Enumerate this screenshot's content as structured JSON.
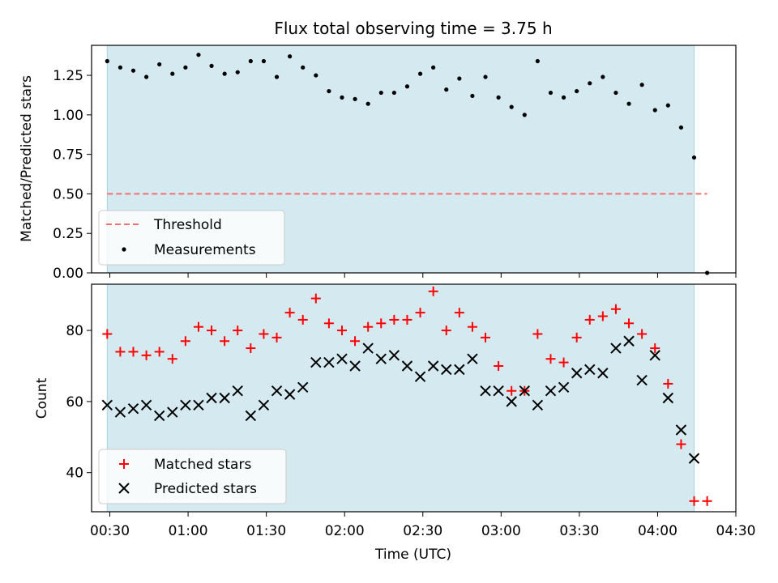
{
  "title": "Flux total observing time = 3.75 h",
  "chart_data": [
    {
      "type": "scatter",
      "ylabel": "Matched/Predicted stars",
      "xlabel": "",
      "ylim": [
        0,
        1.44
      ],
      "yticks": [
        0.0,
        0.25,
        0.5,
        0.75,
        1.0,
        1.25
      ],
      "ytick_labels": [
        "0.00",
        "0.25",
        "0.50",
        "0.75",
        "1.00",
        "1.25"
      ],
      "shaded_interval": [
        "00:29",
        "04:14"
      ],
      "threshold": 0.5,
      "series": [
        {
          "name": "Measurements",
          "color": "#000000",
          "marker": "dot",
          "x": [
            "00:29",
            "00:34",
            "00:39",
            "00:44",
            "00:49",
            "00:54",
            "00:59",
            "01:04",
            "01:09",
            "01:14",
            "01:19",
            "01:24",
            "01:29",
            "01:34",
            "01:39",
            "01:44",
            "01:49",
            "01:54",
            "01:59",
            "02:04",
            "02:09",
            "02:14",
            "02:19",
            "02:24",
            "02:29",
            "02:34",
            "02:39",
            "02:44",
            "02:49",
            "02:54",
            "02:59",
            "03:04",
            "03:09",
            "03:14",
            "03:19",
            "03:24",
            "03:29",
            "03:34",
            "03:39",
            "03:44",
            "03:49",
            "03:54",
            "03:59",
            "04:04",
            "04:09",
            "04:14",
            "04:19"
          ],
          "y": [
            1.34,
            1.3,
            1.28,
            1.24,
            1.32,
            1.26,
            1.3,
            1.38,
            1.31,
            1.26,
            1.27,
            1.34,
            1.34,
            1.24,
            1.37,
            1.3,
            1.25,
            1.15,
            1.11,
            1.1,
            1.07,
            1.14,
            1.14,
            1.18,
            1.26,
            1.3,
            1.16,
            1.23,
            1.12,
            1.24,
            1.11,
            1.05,
            1.0,
            1.34,
            1.14,
            1.11,
            1.15,
            1.2,
            1.24,
            1.14,
            1.07,
            1.19,
            1.03,
            1.06,
            0.92,
            0.73,
            0.0
          ]
        },
        {
          "name": "Threshold",
          "color": "#f07070",
          "style": "dashed",
          "x": [
            "00:29",
            "04:19"
          ],
          "y": [
            0.5,
            0.5
          ]
        }
      ],
      "legend": {
        "placement": "lower-left",
        "entries": [
          "Threshold",
          "Measurements"
        ]
      }
    },
    {
      "type": "scatter",
      "ylabel": "Count",
      "xlabel": "Time (UTC)",
      "ylim": [
        29,
        93
      ],
      "yticks": [
        40,
        60,
        80
      ],
      "ytick_labels": [
        "40",
        "60",
        "80"
      ],
      "xticks": [
        "00:30",
        "01:00",
        "01:30",
        "02:00",
        "02:30",
        "03:00",
        "03:30",
        "04:00",
        "04:30"
      ],
      "xlim": [
        "00:23",
        "04:30"
      ],
      "shaded_interval": [
        "00:29",
        "04:14"
      ],
      "series": [
        {
          "name": "Matched stars",
          "color": "#ff0000",
          "marker": "plus",
          "x": [
            "00:29",
            "00:34",
            "00:39",
            "00:44",
            "00:49",
            "00:54",
            "00:59",
            "01:04",
            "01:09",
            "01:14",
            "01:19",
            "01:24",
            "01:29",
            "01:34",
            "01:39",
            "01:44",
            "01:49",
            "01:54",
            "01:59",
            "02:04",
            "02:09",
            "02:14",
            "02:19",
            "02:24",
            "02:29",
            "02:34",
            "02:39",
            "02:44",
            "02:49",
            "02:54",
            "02:59",
            "03:04",
            "03:09",
            "03:14",
            "03:19",
            "03:24",
            "03:29",
            "03:34",
            "03:39",
            "03:44",
            "03:49",
            "03:54",
            "03:59",
            "04:04",
            "04:09",
            "04:14",
            "04:19"
          ],
          "y": [
            79,
            74,
            74,
            73,
            74,
            72,
            77,
            81,
            80,
            77,
            80,
            75,
            79,
            78,
            85,
            83,
            89,
            82,
            80,
            77,
            81,
            82,
            83,
            83,
            85,
            91,
            80,
            85,
            81,
            78,
            70,
            63,
            63,
            79,
            72,
            71,
            78,
            83,
            84,
            86,
            82,
            79,
            75,
            65,
            48,
            32,
            32
          ]
        },
        {
          "name": "Predicted stars",
          "color": "#000000",
          "marker": "x",
          "x": [
            "00:29",
            "00:34",
            "00:39",
            "00:44",
            "00:49",
            "00:54",
            "00:59",
            "01:04",
            "01:09",
            "01:14",
            "01:19",
            "01:24",
            "01:29",
            "01:34",
            "01:39",
            "01:44",
            "01:49",
            "01:54",
            "01:59",
            "02:04",
            "02:09",
            "02:14",
            "02:19",
            "02:24",
            "02:29",
            "02:34",
            "02:39",
            "02:44",
            "02:49",
            "02:54",
            "02:59",
            "03:04",
            "03:09",
            "03:14",
            "03:19",
            "03:24",
            "03:29",
            "03:34",
            "03:39",
            "03:44",
            "03:49",
            "03:54",
            "03:59",
            "04:04",
            "04:09",
            "04:14"
          ],
          "y": [
            59,
            57,
            58,
            59,
            56,
            57,
            59,
            59,
            61,
            61,
            63,
            56,
            59,
            63,
            62,
            64,
            71,
            71,
            72,
            70,
            75,
            72,
            73,
            70,
            67,
            70,
            69,
            69,
            72,
            63,
            63,
            60,
            63,
            59,
            63,
            64,
            68,
            69,
            68,
            75,
            77,
            66,
            73,
            61,
            52,
            44
          ]
        }
      ],
      "legend": {
        "placement": "lower-left",
        "entries": [
          "Matched stars",
          "Predicted stars"
        ]
      }
    }
  ],
  "colors": {
    "shade": "#d4eaf0",
    "shade_edge": "#a9d3e0",
    "axes": "#000000"
  }
}
